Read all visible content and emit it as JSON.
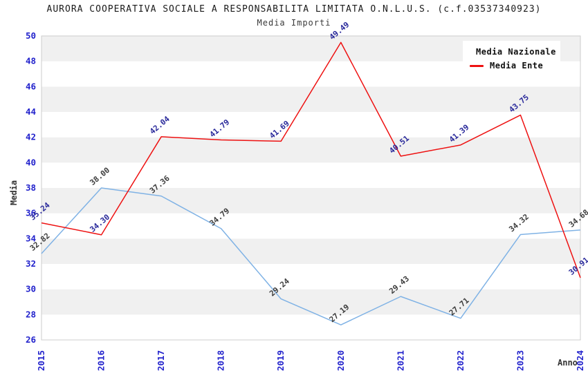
{
  "header": {
    "title": "AURORA COOPERATIVA SOCIALE A RESPONSABILITA LIMITATA O.N.L.U.S. (c.f.03537340923)",
    "subtitle": "Media Importi"
  },
  "chart_data": {
    "type": "line",
    "x": [
      2015,
      2016,
      2017,
      2018,
      2019,
      2020,
      2021,
      2022,
      2023,
      2024
    ],
    "series": [
      {
        "name": "Media Nazionale",
        "color": "#7fb2e5",
        "label_color": "#3d3d3d",
        "values": [
          32.82,
          38.0,
          37.36,
          34.79,
          29.24,
          27.19,
          29.43,
          27.71,
          34.32,
          34.68
        ]
      },
      {
        "name": "Media Ente",
        "color": "#ee1111",
        "label_color": "#2a2a9b",
        "values": [
          35.24,
          34.3,
          42.04,
          41.79,
          41.69,
          49.49,
          40.51,
          41.39,
          43.75,
          30.91
        ]
      }
    ],
    "xlabel": "Anno",
    "ylabel": "Media",
    "ylim": [
      26,
      50
    ],
    "ytick_step": 2,
    "grid": "horizontal-bands",
    "legend_position": "top-right",
    "band_color": "#f0f0f0",
    "plot_border_color": "#cccccc",
    "axis_tick_color": "#2222cc",
    "point_labels_rotation_deg": -40
  }
}
